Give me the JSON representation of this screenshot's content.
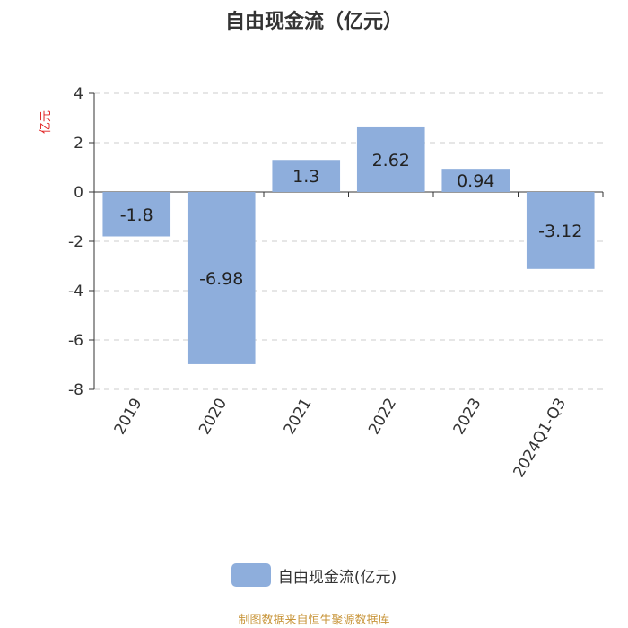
{
  "title": "自由现金流（亿元）",
  "source_note": "制图数据来自恒生聚源数据库",
  "legend": {
    "label": "自由现金流(亿元)"
  },
  "colors": {
    "bar": "#8eaedc",
    "unit": "#e02020",
    "axis": "#333333",
    "grid": "#cccccc",
    "source": "#c8953a"
  },
  "chart_data": {
    "type": "bar",
    "title": "自由现金流（亿元）",
    "ylabel": "亿元",
    "xlabel": "",
    "categories": [
      "2019",
      "2020",
      "2021",
      "2022",
      "2023",
      "2024Q1-Q3"
    ],
    "series": [
      {
        "name": "自由现金流(亿元)",
        "values": [
          -1.8,
          -6.98,
          1.3,
          2.62,
          0.94,
          -3.12
        ]
      }
    ],
    "value_labels": [
      "-1.8",
      "-6.98",
      "1.3",
      "2.62",
      "0.94",
      "-3.12"
    ],
    "ylim": [
      -8,
      4
    ],
    "yticks": [
      -8,
      -6,
      -4,
      -2,
      0,
      2,
      4
    ],
    "grid": true,
    "legend_position": "bottom"
  }
}
